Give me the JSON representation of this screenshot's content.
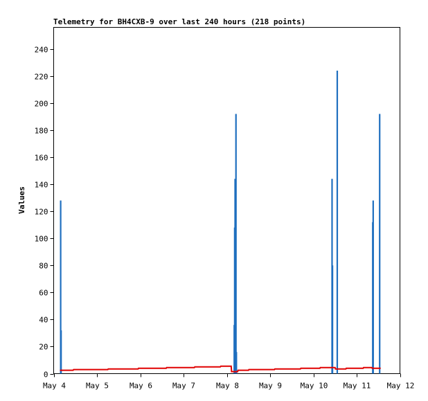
{
  "chart_data": {
    "type": "bar",
    "title": "Telemetry for BH4CXB-9 over last 240 hours (218 points)",
    "xlabel": "",
    "ylabel": "Values",
    "xlim": [
      "May 4",
      "May 12"
    ],
    "ylim": [
      0,
      256
    ],
    "x_ticks": [
      "May 4",
      "May 5",
      "May 6",
      "May 7",
      "May 8",
      "May 9",
      "May 10",
      "May 11",
      "May 12"
    ],
    "y_ticks": [
      0,
      20,
      40,
      60,
      80,
      100,
      120,
      140,
      160,
      180,
      200,
      220,
      240
    ],
    "grid": false,
    "colors": {
      "bars": "#1f6fbf",
      "line": "#e00000",
      "frame": "#000000"
    },
    "series": [
      {
        "type": "bar",
        "x": [
          4.16,
          4.17,
          8.17,
          8.18,
          8.19,
          8.2,
          8.21,
          8.22,
          10.43,
          10.44,
          10.55,
          11.37,
          11.38,
          11.53
        ],
        "values": [
          128,
          32,
          36,
          108,
          144,
          110,
          192,
          16,
          144,
          80,
          224,
          112,
          128,
          192
        ]
      },
      {
        "type": "line",
        "x": [
          4.15,
          4.45,
          4.46,
          5.25,
          5.26,
          5.95,
          5.96,
          6.6,
          6.61,
          7.25,
          7.26,
          7.85,
          7.86,
          8.1,
          8.11,
          8.25,
          8.26,
          8.5,
          8.51,
          9.1,
          9.11,
          9.7,
          9.71,
          10.15,
          10.16,
          10.5,
          10.51,
          10.75,
          10.76,
          11.15,
          11.16,
          11.35,
          11.36,
          11.55
        ],
        "values": [
          2.5,
          2.5,
          3.0,
          3.0,
          3.5,
          3.5,
          4.0,
          4.0,
          4.5,
          4.5,
          5.0,
          5.0,
          5.5,
          5.5,
          1.5,
          1.5,
          2.5,
          2.5,
          3.0,
          3.0,
          3.5,
          3.5,
          4.0,
          4.0,
          4.5,
          4.5,
          3.5,
          3.5,
          4.0,
          4.0,
          4.5,
          4.5,
          4.0,
          4.0
        ]
      }
    ]
  }
}
